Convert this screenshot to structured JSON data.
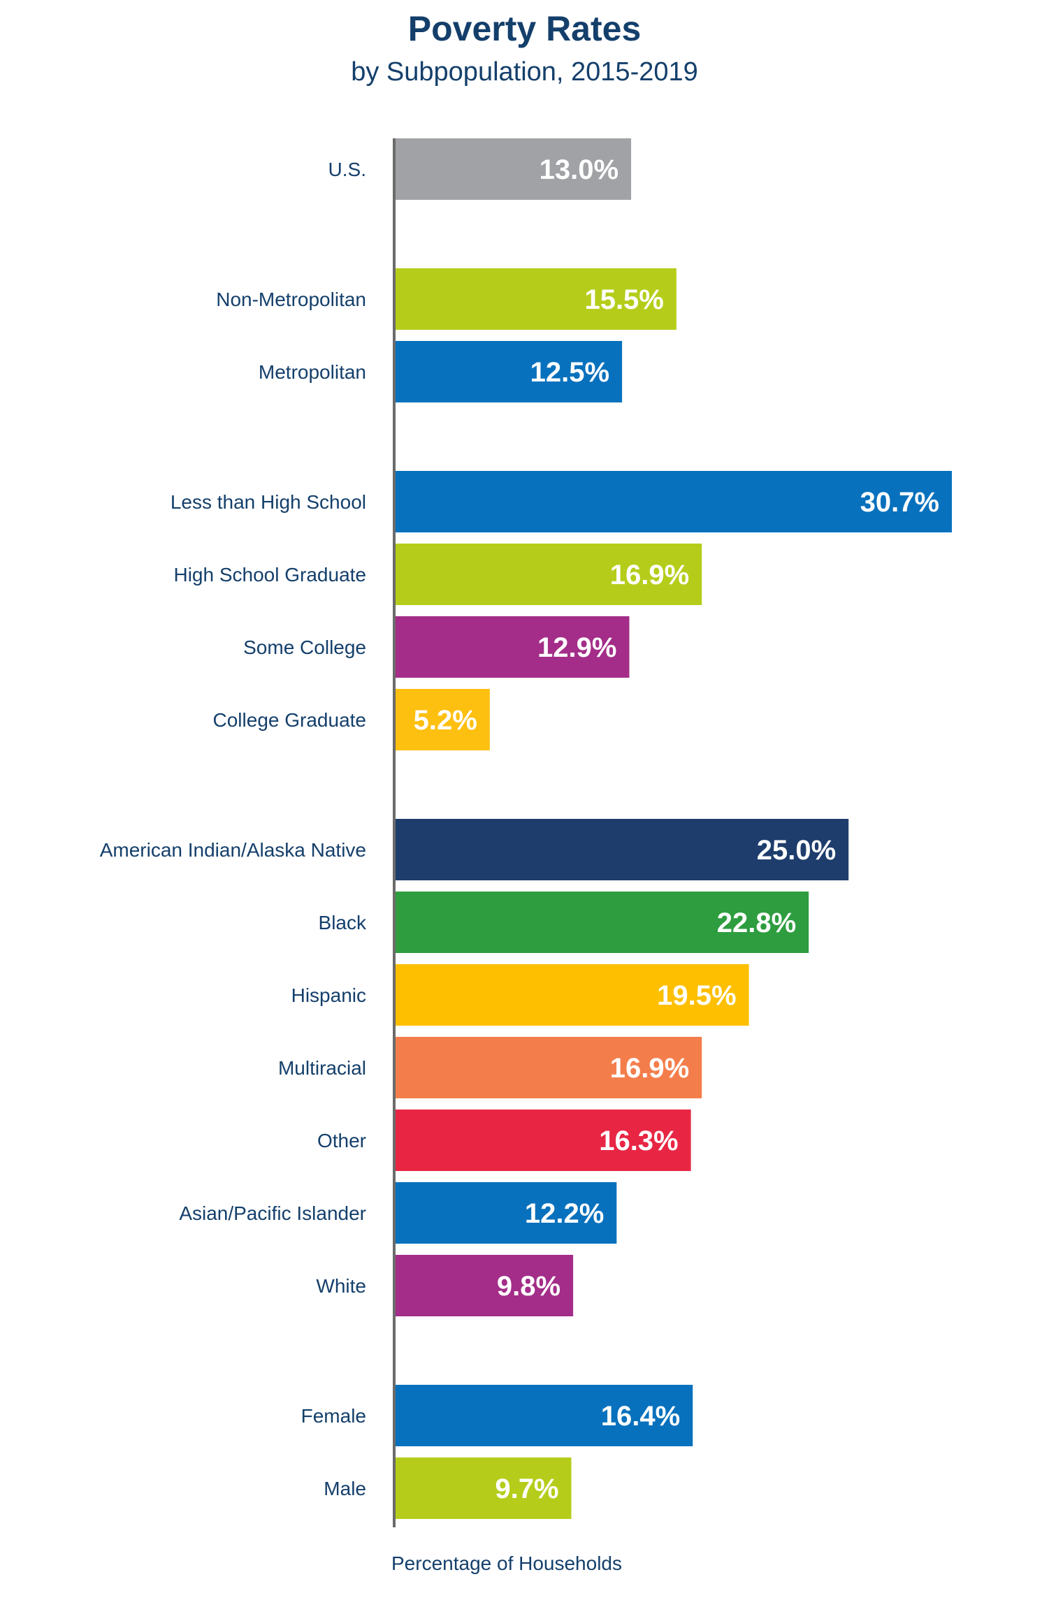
{
  "chart_data": {
    "type": "bar",
    "orientation": "horizontal",
    "title": "Poverty Rates",
    "subtitle": "by Subpopulation, 2015-2019",
    "xlabel": "Percentage of Households",
    "ylabel": "",
    "xlim": [
      0,
      30.7
    ],
    "grid": false,
    "legend": "none",
    "groups": [
      {
        "bars": [
          {
            "category": "U.S.",
            "value": 13.0,
            "label": "13.0%",
            "color": "#a0a2a5"
          }
        ]
      },
      {
        "bars": [
          {
            "category": "Non-Metropolitan",
            "value": 15.5,
            "label": "15.5%",
            "color": "#b5cd1a"
          },
          {
            "category": "Metropolitan",
            "value": 12.5,
            "label": "12.5%",
            "color": "#0871bd"
          }
        ]
      },
      {
        "bars": [
          {
            "category": "Less than High School",
            "value": 30.7,
            "label": "30.7%",
            "color": "#0871bd"
          },
          {
            "category": "High School Graduate",
            "value": 16.9,
            "label": "16.9%",
            "color": "#b5cd1a"
          },
          {
            "category": "Some College",
            "value": 12.9,
            "label": "12.9%",
            "color": "#a32d88"
          },
          {
            "category": "College Graduate",
            "value": 5.2,
            "label": "5.2%",
            "color": "#fdbf10"
          }
        ]
      },
      {
        "bars": [
          {
            "category": "American Indian/Alaska Native",
            "value": 25.0,
            "label": "25.0%",
            "color": "#1e3d6c"
          },
          {
            "category": "Black",
            "value": 22.8,
            "label": "22.8%",
            "color": "#2e9d3f"
          },
          {
            "category": "Hispanic",
            "value": 19.5,
            "label": "19.5%",
            "color": "#fdbf00"
          },
          {
            "category": "Multiracial",
            "value": 16.9,
            "label": "16.9%",
            "color": "#f47e4b"
          },
          {
            "category": "Other",
            "value": 16.3,
            "label": "16.3%",
            "color": "#e82644"
          },
          {
            "category": "Asian/Pacific Islander",
            "value": 12.2,
            "label": "12.2%",
            "color": "#0871bd"
          },
          {
            "category": "White",
            "value": 9.8,
            "label": "9.8%",
            "color": "#a32d88"
          }
        ]
      },
      {
        "bars": [
          {
            "category": "Female",
            "value": 16.4,
            "label": "16.4%",
            "color": "#0871bd"
          },
          {
            "category": "Male",
            "value": 9.7,
            "label": "9.7%",
            "color": "#b5cd1a"
          }
        ]
      }
    ]
  }
}
